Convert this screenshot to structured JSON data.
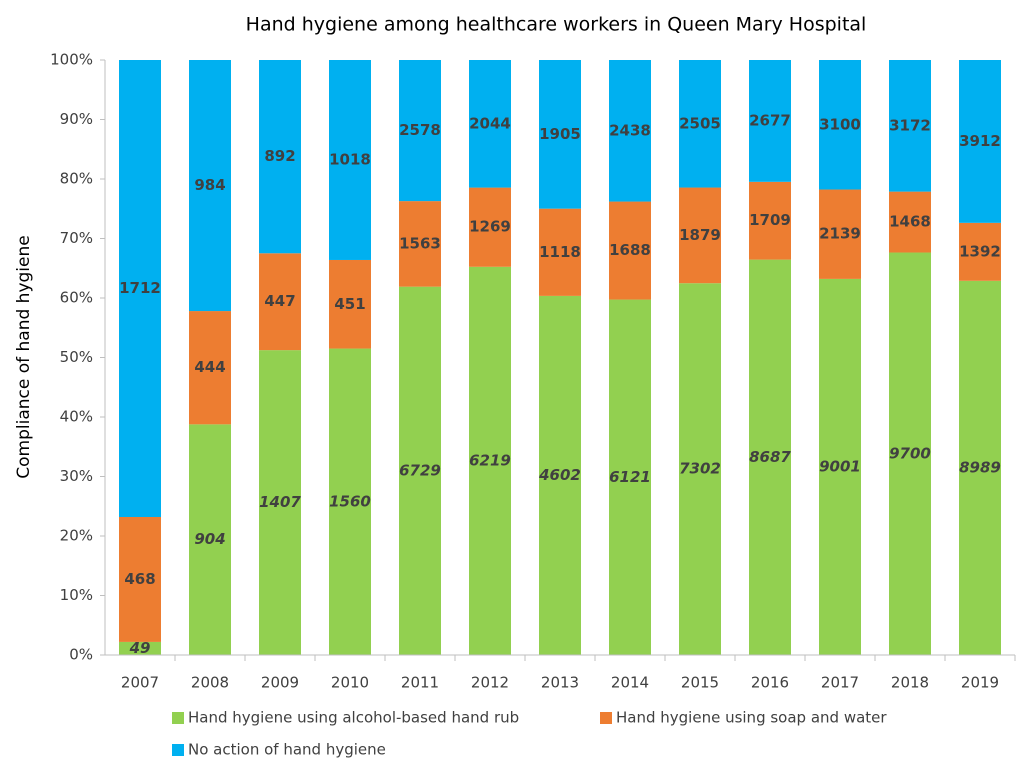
{
  "chart_data": {
    "type": "bar",
    "stacked": "percent",
    "title": "Hand hygiene among healthcare workers in Queen Mary Hospital",
    "y_label": "Compliance of hand hygiene",
    "categories": [
      "2007",
      "2008",
      "2009",
      "2010",
      "2011",
      "2012",
      "2013",
      "2014",
      "2015",
      "2016",
      "2017",
      "2018",
      "2019"
    ],
    "series": [
      {
        "name": "Hand hygiene using alcohol-based hand rub",
        "color": "#92d050",
        "values": [
          49,
          904,
          1407,
          1560,
          6729,
          6219,
          4602,
          6121,
          7302,
          8687,
          9001,
          9700,
          8989
        ]
      },
      {
        "name": "Hand hygiene using soap and water",
        "color": "#ed7d31",
        "values": [
          468,
          444,
          447,
          451,
          1563,
          1269,
          1118,
          1688,
          1879,
          1709,
          2139,
          1468,
          1392
        ]
      },
      {
        "name": "No action of hand hygiene",
        "color": "#00b0f0",
        "values": [
          1712,
          984,
          892,
          1018,
          2578,
          2044,
          1905,
          2438,
          2505,
          2677,
          3100,
          3172,
          3912
        ]
      }
    ],
    "ylim": [
      0,
      100
    ],
    "yticks": [
      {
        "value": 0,
        "label": "0%"
      },
      {
        "value": 10,
        "label": "10%"
      },
      {
        "value": 20,
        "label": "20%"
      },
      {
        "value": 30,
        "label": "30%"
      },
      {
        "value": 40,
        "label": "40%"
      },
      {
        "value": 50,
        "label": "50%"
      },
      {
        "value": 60,
        "label": "60%"
      },
      {
        "value": 70,
        "label": "70%"
      },
      {
        "value": 80,
        "label": "80%"
      },
      {
        "value": 90,
        "label": "90%"
      },
      {
        "value": 100,
        "label": "100%"
      }
    ]
  }
}
